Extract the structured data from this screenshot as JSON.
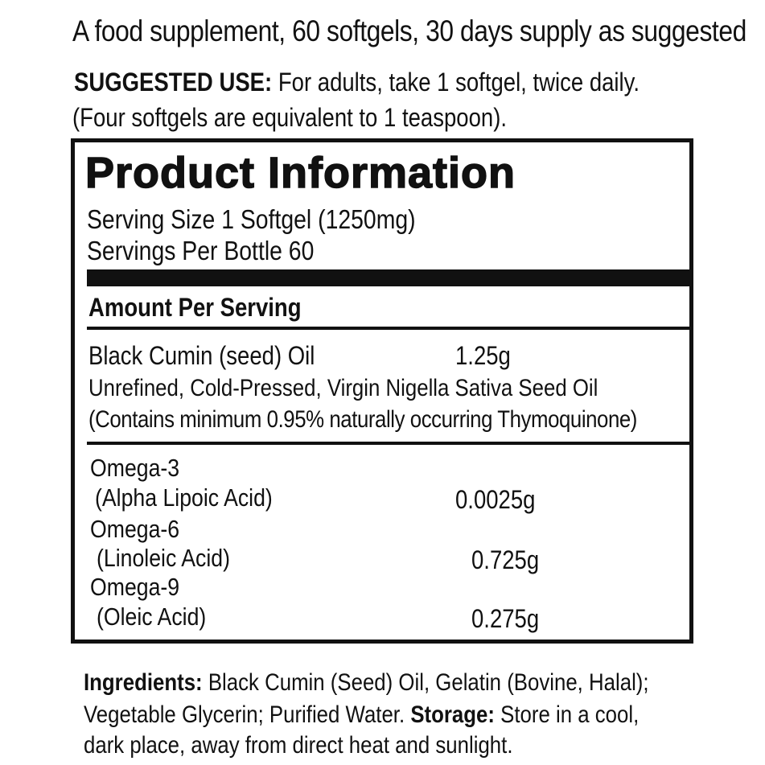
{
  "header": {
    "tagline": "A food supplement, 60 softgels, 30 days supply as suggested",
    "suggested_use_label": "SUGGESTED USE:",
    "suggested_use_text": "For adults, take 1 softgel, twice daily.",
    "equivalence": "(Four softgels are equivalent to 1 teaspoon)."
  },
  "panel": {
    "title": "Product Information",
    "serving_size": "Serving Size 1 Softgel (1250mg)",
    "servings_per_bottle": "Servings Per Bottle 60",
    "amount_header": "Amount Per Serving",
    "main": {
      "name": "Black Cumin (seed) Oil",
      "amount": "1.25g",
      "description": "Unrefined, Cold-Pressed, Virgin Nigella Sativa Seed Oil",
      "note": "(Contains minimum 0.95% naturally occurring Thymoquinone)"
    },
    "omegas": [
      {
        "name": "Omega-3",
        "sub": "(Alpha Lipoic Acid)",
        "amount": "0.0025g"
      },
      {
        "name": "Omega-6",
        "sub": "(Linoleic Acid)",
        "amount": "0.725g"
      },
      {
        "name": "Omega-9",
        "sub": "(Oleic Acid)",
        "amount": "0.275g"
      }
    ]
  },
  "footer": {
    "ingredients_label": "Ingredients:",
    "ingredients_text_1": "Black Cumin (Seed) Oil, Gelatin (Bovine, Halal);",
    "ingredients_text_2": "Vegetable Glycerin; Purified Water.",
    "storage_label": "Storage:",
    "storage_text_1": "Store in a cool,",
    "storage_text_2": "dark place, away from direct heat and sunlight."
  }
}
